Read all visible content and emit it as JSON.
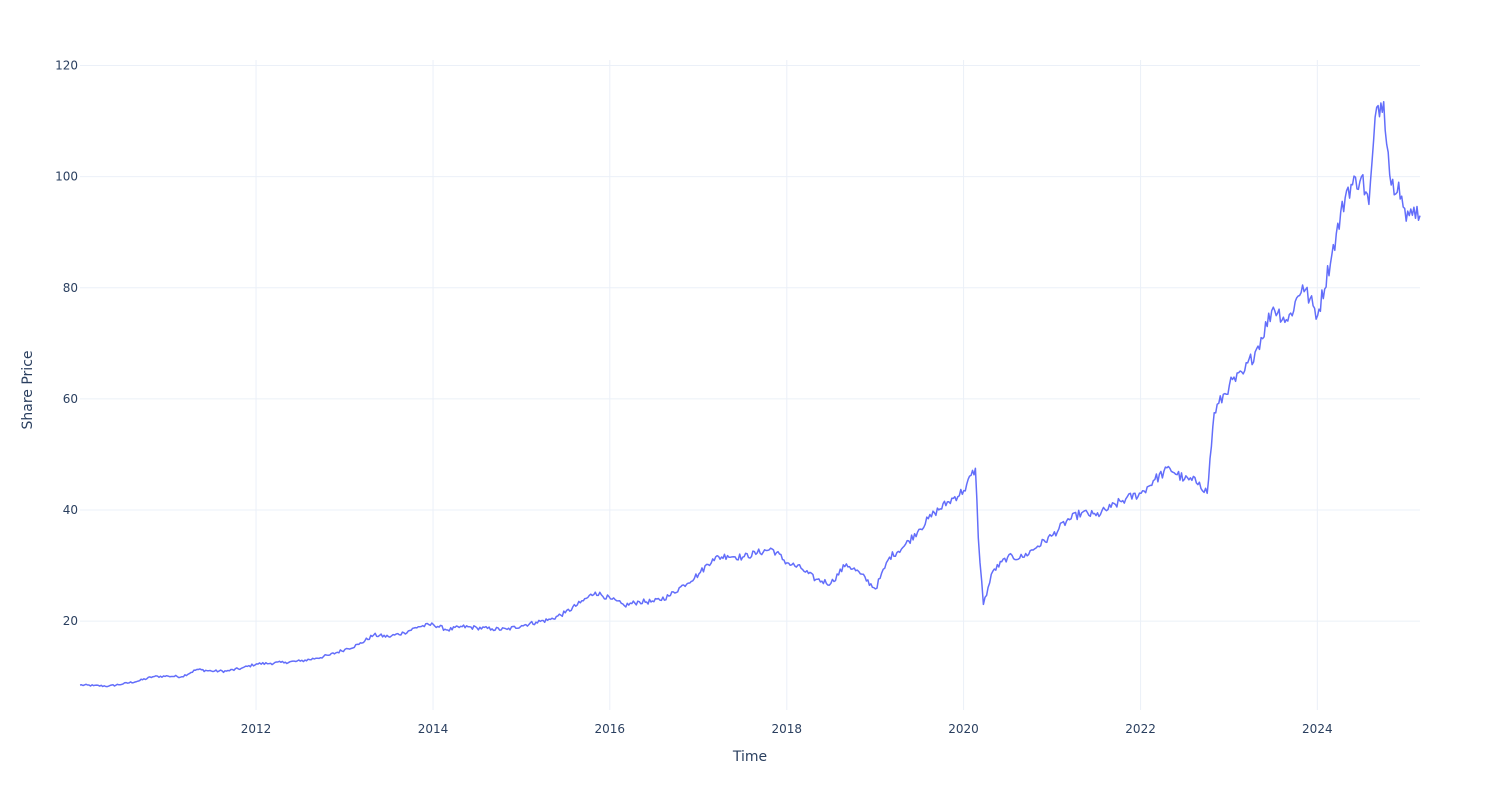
{
  "chart_data": {
    "type": "line",
    "title": "",
    "xlabel": "Time",
    "ylabel": "Share Price",
    "x_type": "date",
    "xlim": [
      "2010-01-04",
      "2025-02-28"
    ],
    "ylim": [
      4,
      121
    ],
    "x_ticks": [
      {
        "value": "2012-01-01",
        "label": "2012"
      },
      {
        "value": "2014-01-01",
        "label": "2014"
      },
      {
        "value": "2016-01-01",
        "label": "2016"
      },
      {
        "value": "2018-01-01",
        "label": "2018"
      },
      {
        "value": "2020-01-01",
        "label": "2020"
      },
      {
        "value": "2022-01-01",
        "label": "2022"
      },
      {
        "value": "2024-01-01",
        "label": "2024"
      }
    ],
    "y_ticks": [
      20,
      40,
      60,
      80,
      100,
      120
    ],
    "grid": true,
    "legend": "none",
    "colors": {
      "line": "#636efa",
      "grid": "#ebf0f8",
      "text": "#2a3f5f",
      "background": "#ffffff"
    },
    "series": [
      {
        "x": [
          "2010-01-04",
          "2010-03-01",
          "2010-05-03",
          "2010-07-01",
          "2010-09-01",
          "2010-11-01",
          "2011-01-03",
          "2011-03-01",
          "2011-05-02",
          "2011-07-01",
          "2011-09-01",
          "2011-11-01",
          "2012-01-03",
          "2012-03-01",
          "2012-05-01",
          "2012-07-02",
          "2012-09-04",
          "2012-11-01",
          "2013-01-02",
          "2013-03-01",
          "2013-05-01",
          "2013-07-01",
          "2013-09-03",
          "2013-11-01",
          "2014-01-02",
          "2014-03-03",
          "2014-05-01",
          "2014-07-01",
          "2014-09-02",
          "2014-11-03",
          "2015-01-02",
          "2015-03-02",
          "2015-05-01",
          "2015-07-01",
          "2015-09-01",
          "2015-11-02",
          "2016-01-04",
          "2016-03-01",
          "2016-05-02",
          "2016-07-01",
          "2016-09-01",
          "2016-11-01",
          "2017-01-03",
          "2017-03-01",
          "2017-05-01",
          "2017-07-03",
          "2017-09-01",
          "2017-11-01",
          "2018-01-02",
          "2018-03-01",
          "2018-05-01",
          "2018-07-02",
          "2018-09-04",
          "2018-11-01",
          "2019-01-02",
          "2019-03-01",
          "2019-05-01",
          "2019-07-01",
          "2019-09-03",
          "2019-11-01",
          "2020-01-02",
          "2020-02-19",
          "2020-03-02",
          "2020-03-23",
          "2020-05-01",
          "2020-07-01",
          "2020-09-01",
          "2020-11-02",
          "2021-01-04",
          "2021-03-01",
          "2021-05-03",
          "2021-07-01",
          "2021-09-01",
          "2021-11-01",
          "2022-01-03",
          "2022-03-01",
          "2022-05-02",
          "2022-07-01",
          "2022-09-01",
          "2022-10-03",
          "2022-11-01",
          "2023-01-03",
          "2023-03-01",
          "2023-05-01",
          "2023-07-03",
          "2023-09-01",
          "2023-11-01",
          "2024-01-02",
          "2024-03-01",
          "2024-05-01",
          "2024-07-01",
          "2024-08-01",
          "2024-09-02",
          "2024-10-01",
          "2024-11-01",
          "2024-12-02",
          "2025-01-02",
          "2025-02-03",
          "2025-02-28"
        ],
        "y": [
          8.5,
          8.4,
          8.3,
          8.7,
          9.2,
          10.0,
          10.1,
          10.0,
          11.3,
          11.0,
          11.0,
          11.5,
          12.3,
          12.4,
          12.6,
          12.8,
          13.3,
          13.9,
          14.9,
          15.8,
          17.5,
          17.2,
          17.9,
          19.0,
          19.4,
          18.4,
          19.0,
          18.8,
          18.6,
          18.5,
          19.2,
          19.8,
          20.3,
          21.5,
          23.3,
          25.2,
          24.0,
          22.8,
          23.5,
          23.5,
          24.5,
          26.5,
          28.5,
          31.2,
          31.8,
          31.5,
          32.3,
          33.0,
          30.5,
          29.5,
          27.5,
          26.8,
          30.3,
          28.5,
          25.8,
          31.5,
          33.5,
          36.5,
          39.5,
          41.5,
          43.5,
          47.5,
          35.0,
          23.0,
          29.0,
          31.5,
          31.5,
          33.5,
          35.5,
          38.0,
          39.5,
          39.0,
          40.5,
          42.0,
          43.0,
          45.5,
          47.5,
          45.5,
          45.0,
          43.0,
          57.5,
          62.5,
          64.5,
          69.5,
          76.5,
          74.0,
          80.5,
          75.0,
          86.0,
          97.5,
          100.0,
          95.0,
          112.5,
          113.5,
          98.5,
          99.0,
          92.0,
          94.5,
          93.0
        ]
      }
    ]
  }
}
